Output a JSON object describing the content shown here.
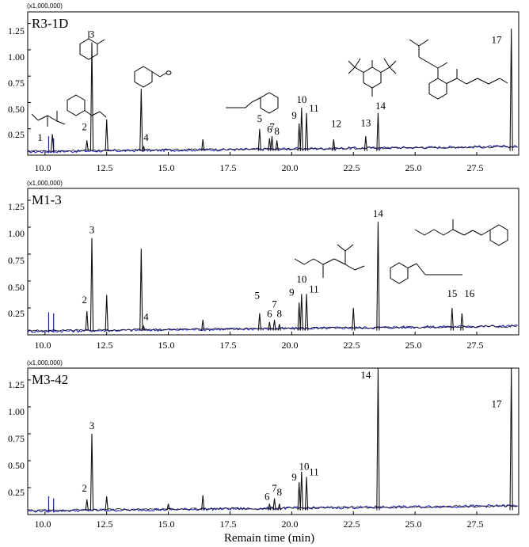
{
  "figure": {
    "xlabel": "Remain time (min)",
    "x_ticks": [
      "10.0",
      "12.5",
      "15.0",
      "17.5",
      "20.0",
      "22.5",
      "25.0",
      "27.5"
    ],
    "y_ticks": [
      "0.25",
      "0.50",
      "0.75",
      "1.00",
      "1.25"
    ]
  },
  "chart_data": [
    {
      "type": "line",
      "title": "R3-1D",
      "scale_label": "(x1,000,000)",
      "xlabel": "",
      "xlim": [
        9.3,
        29.2
      ],
      "ylim": [
        0,
        1.36
      ],
      "colors": {
        "sample": "#111111",
        "blank": "#1a1acc"
      },
      "peaks": [
        {
          "label": "1",
          "x": 10.3,
          "y": 0.2,
          "lx": 9.8,
          "ly": 0.12
        },
        {
          "label": "2",
          "x": 11.7,
          "y": 0.14,
          "lx": 11.6,
          "ly": 0.22
        },
        {
          "label": "3",
          "x": 11.9,
          "y": 1.07,
          "lx": 11.9,
          "ly": 1.1
        },
        {
          "label": "",
          "x": 12.5,
          "y": 0.34
        },
        {
          "label": "",
          "x": 13.9,
          "y": 0.63
        },
        {
          "label": "4",
          "x": 14.0,
          "y": 0.08,
          "lx": 14.1,
          "ly": 0.12
        },
        {
          "label": "",
          "x": 16.4,
          "y": 0.15
        },
        {
          "label": "5",
          "x": 18.7,
          "y": 0.25,
          "lx": 18.7,
          "ly": 0.3
        },
        {
          "label": "6",
          "x": 19.1,
          "y": 0.16,
          "lx": 19.1,
          "ly": 0.2
        },
        {
          "label": "7",
          "x": 19.2,
          "y": 0.18,
          "lx": 19.2,
          "ly": 0.22
        },
        {
          "label": "8",
          "x": 19.4,
          "y": 0.14,
          "lx": 19.4,
          "ly": 0.18
        },
        {
          "label": "9",
          "x": 20.3,
          "y": 0.3,
          "lx": 20.1,
          "ly": 0.33
        },
        {
          "label": "10",
          "x": 20.4,
          "y": 0.45,
          "lx": 20.4,
          "ly": 0.48
        },
        {
          "label": "11",
          "x": 20.6,
          "y": 0.4,
          "lx": 20.9,
          "ly": 0.4
        },
        {
          "label": "12",
          "x": 21.7,
          "y": 0.15,
          "lx": 21.8,
          "ly": 0.25
        },
        {
          "label": "13",
          "x": 23.0,
          "y": 0.18,
          "lx": 23.0,
          "ly": 0.26
        },
        {
          "label": "14",
          "x": 23.5,
          "y": 0.4,
          "lx": 23.6,
          "ly": 0.42
        },
        {
          "label": "17",
          "x": 28.9,
          "y": 1.2,
          "lx": 28.3,
          "ly": 1.05
        }
      ],
      "blank_peaks": [
        {
          "x": 10.15,
          "y": 0.18
        },
        {
          "x": 10.35,
          "y": 0.16
        }
      ]
    },
    {
      "type": "line",
      "title": "M1-3",
      "scale_label": "(x1,000,000)",
      "xlabel": "",
      "xlim": [
        9.3,
        29.2
      ],
      "ylim": [
        0,
        1.36
      ],
      "colors": {
        "sample": "#111111",
        "blank": "#1a1acc"
      },
      "peaks": [
        {
          "label": "2",
          "x": 11.7,
          "y": 0.22,
          "lx": 11.6,
          "ly": 0.28
        },
        {
          "label": "3",
          "x": 11.9,
          "y": 0.9,
          "lx": 11.9,
          "ly": 0.93
        },
        {
          "label": "",
          "x": 12.5,
          "y": 0.37
        },
        {
          "label": "",
          "x": 13.9,
          "y": 0.8
        },
        {
          "label": "4",
          "x": 14.0,
          "y": 0.08,
          "lx": 14.1,
          "ly": 0.12
        },
        {
          "label": "",
          "x": 16.4,
          "y": 0.14
        },
        {
          "label": "5",
          "x": 18.7,
          "y": 0.2,
          "lx": 18.6,
          "ly": 0.32
        },
        {
          "label": "6",
          "x": 19.1,
          "y": 0.12,
          "lx": 19.1,
          "ly": 0.15
        },
        {
          "label": "7",
          "x": 19.3,
          "y": 0.14,
          "lx": 19.3,
          "ly": 0.24
        },
        {
          "label": "8",
          "x": 19.5,
          "y": 0.1,
          "lx": 19.5,
          "ly": 0.15
        },
        {
          "label": "9",
          "x": 20.3,
          "y": 0.3,
          "lx": 20.0,
          "ly": 0.35
        },
        {
          "label": "10",
          "x": 20.4,
          "y": 0.38,
          "lx": 20.4,
          "ly": 0.47
        },
        {
          "label": "11",
          "x": 20.6,
          "y": 0.38,
          "lx": 20.9,
          "ly": 0.38
        },
        {
          "label": "",
          "x": 22.5,
          "y": 0.25
        },
        {
          "label": "14",
          "x": 23.5,
          "y": 1.05,
          "lx": 23.5,
          "ly": 1.08
        },
        {
          "label": "15",
          "x": 26.5,
          "y": 0.25,
          "lx": 26.5,
          "ly": 0.34
        },
        {
          "label": "16",
          "x": 26.9,
          "y": 0.2,
          "lx": 27.2,
          "ly": 0.34
        }
      ],
      "blank_peaks": [
        {
          "x": 10.15,
          "y": 0.21
        },
        {
          "x": 10.35,
          "y": 0.2
        }
      ]
    },
    {
      "type": "line",
      "title": "M3-42",
      "scale_label": "(x1,000,000)",
      "xlabel": "Remain time (min)",
      "xlim": [
        9.3,
        29.2
      ],
      "ylim": [
        0,
        1.36
      ],
      "colors": {
        "sample": "#111111",
        "blank": "#1a1acc"
      },
      "peaks": [
        {
          "label": "2",
          "x": 11.7,
          "y": 0.14,
          "lx": 11.6,
          "ly": 0.2
        },
        {
          "label": "3",
          "x": 11.9,
          "y": 0.75,
          "lx": 11.9,
          "ly": 0.78
        },
        {
          "label": "",
          "x": 12.5,
          "y": 0.17
        },
        {
          "label": "",
          "x": 15.0,
          "y": 0.1
        },
        {
          "label": "",
          "x": 16.4,
          "y": 0.18
        },
        {
          "label": "6",
          "x": 19.1,
          "y": 0.1,
          "lx": 19.0,
          "ly": 0.12
        },
        {
          "label": "7",
          "x": 19.3,
          "y": 0.15,
          "lx": 19.3,
          "ly": 0.2
        },
        {
          "label": "8",
          "x": 19.5,
          "y": 0.1,
          "lx": 19.5,
          "ly": 0.16
        },
        {
          "label": "9",
          "x": 20.3,
          "y": 0.3,
          "lx": 20.1,
          "ly": 0.3
        },
        {
          "label": "10",
          "x": 20.4,
          "y": 0.4,
          "lx": 20.5,
          "ly": 0.4
        },
        {
          "label": "11",
          "x": 20.6,
          "y": 0.35,
          "lx": 20.9,
          "ly": 0.35
        },
        {
          "label": "14",
          "x": 23.5,
          "y": 1.38,
          "lx": 23.0,
          "ly": 1.25
        },
        {
          "label": "17",
          "x": 28.9,
          "y": 1.38,
          "lx": 28.3,
          "ly": 0.98
        }
      ],
      "blank_peaks": [
        {
          "x": 10.15,
          "y": 0.17
        },
        {
          "x": 10.35,
          "y": 0.15
        }
      ]
    }
  ]
}
